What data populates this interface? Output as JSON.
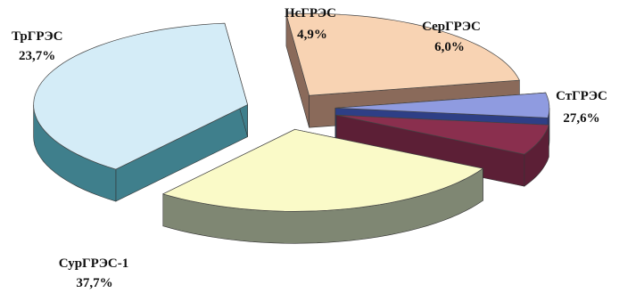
{
  "chart_data": {
    "type": "pie",
    "slices": [
      {
        "label": "СурГРЭС-1",
        "percent_label": "37,7%",
        "value": 37.7,
        "color": "#d4ecf7",
        "side": "#3f7f8c"
      },
      {
        "label": "ТрГРЭС",
        "percent_label": "23,7%",
        "value": 23.7,
        "color": "#f8d3b3",
        "side": "#8a6a5a"
      },
      {
        "label": "НсГРЭС",
        "percent_label": "4,9%",
        "value": 4.9,
        "color": "#8f9be0",
        "side": "#2e3f86"
      },
      {
        "label": "СерГРЭС",
        "percent_label": "6,0%",
        "value": 6.0,
        "color": "#8a2f4e",
        "side": "#5c1f36"
      },
      {
        "label": "СтГРЭС",
        "percent_label": "27,6%",
        "value": 27.6,
        "color": "#fafac8",
        "side": "#7f8773"
      }
    ]
  }
}
